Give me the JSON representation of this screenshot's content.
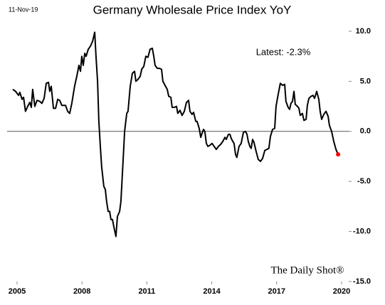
{
  "chart_data": {
    "type": "line",
    "title": "Germany Wholesale Price Index YoY",
    "date_label": "11-Nov-19",
    "annotation": "Latest:  -2.3%",
    "source": "The Daily Shot®",
    "color": "#000000",
    "last_point_color": "#ff0000",
    "xlim": [
      2004.54,
      2020.33
    ],
    "xticks": [
      2005,
      2008,
      2011,
      2014,
      2017,
      2020
    ],
    "ylim": [
      -15,
      10
    ],
    "yticks": [
      {
        "value": -15,
        "label": "-15.0"
      },
      {
        "value": -10,
        "label": "-10.0"
      },
      {
        "value": -5,
        "label": "-5.0"
      },
      {
        "value": 0,
        "label": "0.0"
      },
      {
        "value": 5,
        "label": "5.0"
      },
      {
        "value": 10,
        "label": "10.0"
      }
    ],
    "x": [
      2004.8,
      2004.93,
      2005.07,
      2005.13,
      2005.23,
      2005.3,
      2005.39,
      2005.49,
      2005.59,
      2005.66,
      2005.72,
      2005.82,
      2005.92,
      2006.05,
      2006.15,
      2006.25,
      2006.35,
      2006.45,
      2006.51,
      2006.58,
      2006.68,
      2006.78,
      2006.88,
      2006.97,
      2007.07,
      2007.24,
      2007.34,
      2007.43,
      2007.53,
      2007.66,
      2007.76,
      2007.86,
      2007.93,
      2007.99,
      2008.06,
      2008.13,
      2008.19,
      2008.29,
      2008.39,
      2008.49,
      2008.59,
      2008.65,
      2008.72,
      2008.78,
      2008.85,
      2008.91,
      2009.01,
      2009.08,
      2009.14,
      2009.21,
      2009.28,
      2009.34,
      2009.41,
      2009.47,
      2009.57,
      2009.64,
      2009.74,
      2009.8,
      2009.9,
      2009.97,
      2010.07,
      2010.13,
      2010.23,
      2010.33,
      2010.43,
      2010.49,
      2010.59,
      2010.69,
      2010.76,
      2010.86,
      2010.95,
      2011.05,
      2011.15,
      2011.25,
      2011.32,
      2011.38,
      2011.48,
      2011.58,
      2011.68,
      2011.74,
      2011.84,
      2011.94,
      2012.01,
      2012.11,
      2012.17,
      2012.27,
      2012.37,
      2012.43,
      2012.53,
      2012.63,
      2012.73,
      2012.83,
      2012.93,
      2012.99,
      2013.09,
      2013.16,
      2013.26,
      2013.32,
      2013.42,
      2013.49,
      2013.55,
      2013.62,
      2013.68,
      2013.75,
      2013.82,
      2013.91,
      2014.01,
      2014.11,
      2014.21,
      2014.31,
      2014.41,
      2014.51,
      2014.61,
      2014.67,
      2014.77,
      2014.84,
      2014.9,
      2014.97,
      2015.03,
      2015.1,
      2015.16,
      2015.26,
      2015.36,
      2015.46,
      2015.56,
      2015.63,
      2015.69,
      2015.76,
      2015.82,
      2015.89,
      2015.95,
      2016.05,
      2016.15,
      2016.25,
      2016.35,
      2016.45,
      2016.55,
      2016.64,
      2016.71,
      2016.81,
      2016.91,
      2016.97,
      2017.07,
      2017.17,
      2017.27,
      2017.37,
      2017.43,
      2017.53,
      2017.6,
      2017.66,
      2017.73,
      2017.8,
      2017.86,
      2017.96,
      2018.03,
      2018.09,
      2018.19,
      2018.26,
      2018.36,
      2018.42,
      2018.49,
      2018.59,
      2018.68,
      2018.75,
      2018.85,
      2018.95,
      2019.01,
      2019.08,
      2019.18,
      2019.28,
      2019.38,
      2019.44,
      2019.54,
      2019.64,
      2019.74,
      2019.84
    ],
    "values": [
      4.2,
      4.0,
      3.6,
      3.9,
      3.2,
      3.4,
      2.0,
      2.5,
      2.9,
      2.4,
      4.2,
      2.5,
      3.1,
      3.0,
      2.8,
      3.3,
      4.8,
      4.9,
      4.0,
      4.5,
      2.3,
      2.3,
      3.2,
      3.1,
      2.6,
      2.6,
      2.0,
      1.8,
      2.8,
      4.5,
      5.5,
      6.6,
      6.0,
      7.5,
      6.6,
      7.8,
      7.5,
      8.2,
      8.5,
      9.0,
      9.9,
      7.5,
      5.0,
      1.0,
      -1.5,
      -3.5,
      -5.5,
      -5.8,
      -7.0,
      -8.0,
      -8.0,
      -8.8,
      -8.8,
      -9.5,
      -10.5,
      -8.5,
      -8.0,
      -7.0,
      -3.0,
      0.0,
      1.8,
      2.0,
      4.5,
      5.8,
      6.0,
      5.0,
      5.2,
      5.5,
      6.2,
      6.5,
      7.5,
      7.4,
      8.2,
      8.3,
      7.5,
      6.6,
      6.3,
      6.3,
      6.2,
      5.0,
      4.6,
      4.2,
      3.5,
      3.4,
      2.4,
      2.4,
      2.5,
      1.8,
      2.1,
      1.6,
      2.0,
      2.9,
      3.1,
      2.0,
      1.7,
      1.9,
      1.0,
      1.0,
      0.3,
      -0.6,
      -0.2,
      0.2,
      0.0,
      -1.2,
      -1.5,
      -1.4,
      -1.2,
      -1.5,
      -1.8,
      -1.5,
      -1.3,
      -1.0,
      -0.6,
      -0.8,
      -0.3,
      -0.3,
      -0.7,
      -1.0,
      -1.2,
      -2.3,
      -2.6,
      -1.5,
      -1.2,
      -0.1,
      0.0,
      -0.3,
      -1.0,
      -1.5,
      -1.7,
      -0.8,
      -1.1,
      -2.0,
      -2.8,
      -3.0,
      -2.7,
      -1.9,
      -1.8,
      -1.7,
      -0.5,
      0.2,
      0.3,
      2.5,
      3.7,
      4.8,
      4.6,
      4.7,
      3.0,
      2.4,
      2.2,
      2.8,
      3.0,
      4.0,
      2.7,
      2.5,
      2.3,
      1.6,
      1.8,
      1.1,
      1.2,
      2.6,
      3.3,
      3.5,
      3.6,
      3.3,
      4.0,
      3.2,
      2.0,
      1.2,
      1.7,
      2.0,
      1.5,
      0.6,
      0.0,
      -1.0,
      -1.8,
      -2.3
    ]
  }
}
